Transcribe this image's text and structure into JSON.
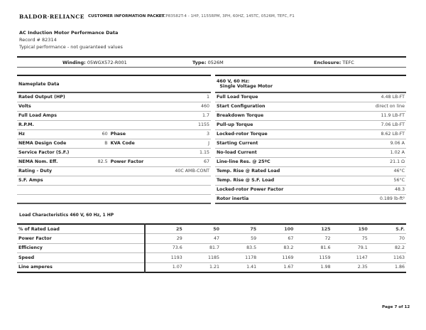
{
  "header": {
    "logo": "BALDOR·RELIANCE",
    "packet": "CUSTOMER INFORMATION PACKET",
    "description": "CECP83582T-4 - 1HP, 1155RPM, 3PH, 60HZ, 145TC, 0526M, TEFC, F1"
  },
  "title": "AC Induction Motor Performance Data",
  "record": "Record # 82314",
  "note": "Typical performance - not guaranteed values",
  "winding": {
    "winding_label": "Winding:",
    "winding": "05WGX572-R001",
    "type_label": "Type:",
    "type": "0526M",
    "enclosure_label": "Enclosure:",
    "enclosure": "TEFC"
  },
  "nameplate": {
    "title": "Nameplate Data",
    "rows": [
      {
        "k": "Rated Output (HP)",
        "v": "1"
      },
      {
        "k": "Volts",
        "v": "460"
      },
      {
        "k": "Full Load Amps",
        "v": "1.7"
      },
      {
        "k": "R.P.M.",
        "v": "1155"
      },
      {
        "k": "Hz",
        "v": "60",
        "k2": "Phase",
        "v2": "3"
      },
      {
        "k": "NEMA Design Code",
        "v": "B",
        "k2": "KVA Code",
        "v2": "J"
      },
      {
        "k": "Service Factor (S.F.)",
        "v": "1.15"
      },
      {
        "k": "NEMA Nom. Eff.",
        "v": "82.5",
        "k2": "Power Factor",
        "v2": "67"
      },
      {
        "k": "Rating - Duty",
        "v": "40C AMB-CONT"
      },
      {
        "k": "S.F. Amps",
        "v": ""
      }
    ]
  },
  "performance": {
    "title1": "460 V, 60 Hz:",
    "title2": "Single Voltage Motor",
    "rows": [
      {
        "k": "Full Load Torque",
        "v": "4.48 LB-FT"
      },
      {
        "k": "Start Configuration",
        "v": "direct on line"
      },
      {
        "k": "Breakdown Torque",
        "v": "11.9 LB-FT"
      },
      {
        "k": "Pull-up Torque",
        "v": "7.06 LB-FT"
      },
      {
        "k": "Locked-rotor Torque",
        "v": "8.62 LB-FT"
      },
      {
        "k": "Starting Current",
        "v": "9.06 A"
      },
      {
        "k": "No-load Current",
        "v": "1.02 A"
      },
      {
        "k": "Line-line Res. @ 25ºC",
        "v": "21.1 Ω"
      },
      {
        "k": "Temp. Rise @ Rated Load",
        "v": "46°C"
      },
      {
        "k": "Temp. Rise @ S.F. Load",
        "v": "56°C"
      },
      {
        "k": "Locked-rotor Power Factor",
        "v": "48.3"
      },
      {
        "k": "Rotor inertia",
        "v": "0.189 lb-ft²"
      }
    ]
  },
  "load": {
    "title": "Load Characteristics 460 V, 60 Hz, 1 HP",
    "headers": [
      "% of Rated Load",
      "25",
      "50",
      "75",
      "100",
      "125",
      "150",
      "S.F."
    ],
    "rows": [
      [
        "Power Factor",
        "29",
        "47",
        "59",
        "67",
        "72",
        "75",
        "70"
      ],
      [
        "Efficiency",
        "73.6",
        "81.7",
        "83.5",
        "83.2",
        "81.6",
        "79.1",
        "82.2"
      ],
      [
        "Speed",
        "1193",
        "1185",
        "1178",
        "1169",
        "1159",
        "1147",
        "1163"
      ],
      [
        "Line amperes",
        "1.07",
        "1.21",
        "1.41",
        "1.67",
        "1.98",
        "2.35",
        "1.86"
      ]
    ]
  },
  "footer": {
    "page": "Page 7 of 12"
  }
}
